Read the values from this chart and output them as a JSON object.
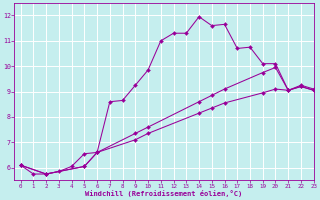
{
  "xlabel": "Windchill (Refroidissement éolien,°C)",
  "xlim": [
    -0.5,
    23
  ],
  "ylim": [
    5.5,
    12.5
  ],
  "yticks": [
    6,
    7,
    8,
    9,
    10,
    11,
    12
  ],
  "xticks": [
    0,
    1,
    2,
    3,
    4,
    5,
    6,
    7,
    8,
    9,
    10,
    11,
    12,
    13,
    14,
    15,
    16,
    17,
    18,
    19,
    20,
    21,
    22,
    23
  ],
  "bg_color": "#c5eeee",
  "grid_color": "#aadddd",
  "line_color": "#990099",
  "line1_x": [
    0,
    1,
    2,
    3,
    4,
    5,
    6,
    7,
    8,
    9,
    10,
    11,
    12,
    13,
    14,
    15,
    16,
    17,
    18,
    19,
    20,
    21,
    22,
    23
  ],
  "line1_y": [
    6.1,
    5.75,
    5.75,
    5.85,
    6.05,
    6.55,
    6.6,
    8.6,
    8.65,
    9.25,
    9.85,
    11.0,
    11.3,
    11.3,
    11.95,
    11.6,
    11.65,
    10.7,
    10.75,
    10.1,
    10.1,
    9.05,
    9.25,
    9.1
  ],
  "line2_x": [
    0,
    2,
    5,
    6,
    9,
    10,
    14,
    15,
    16,
    19,
    20,
    21,
    22,
    23
  ],
  "line2_y": [
    6.1,
    5.75,
    6.05,
    6.6,
    7.35,
    7.6,
    8.6,
    8.85,
    9.1,
    9.75,
    9.95,
    9.05,
    9.2,
    9.05
  ],
  "line3_x": [
    0,
    2,
    5,
    6,
    9,
    10,
    14,
    15,
    16,
    19,
    20,
    21,
    22,
    23
  ],
  "line3_y": [
    6.1,
    5.75,
    6.05,
    6.6,
    7.1,
    7.35,
    8.15,
    8.35,
    8.55,
    8.95,
    9.1,
    9.05,
    9.2,
    9.05
  ]
}
